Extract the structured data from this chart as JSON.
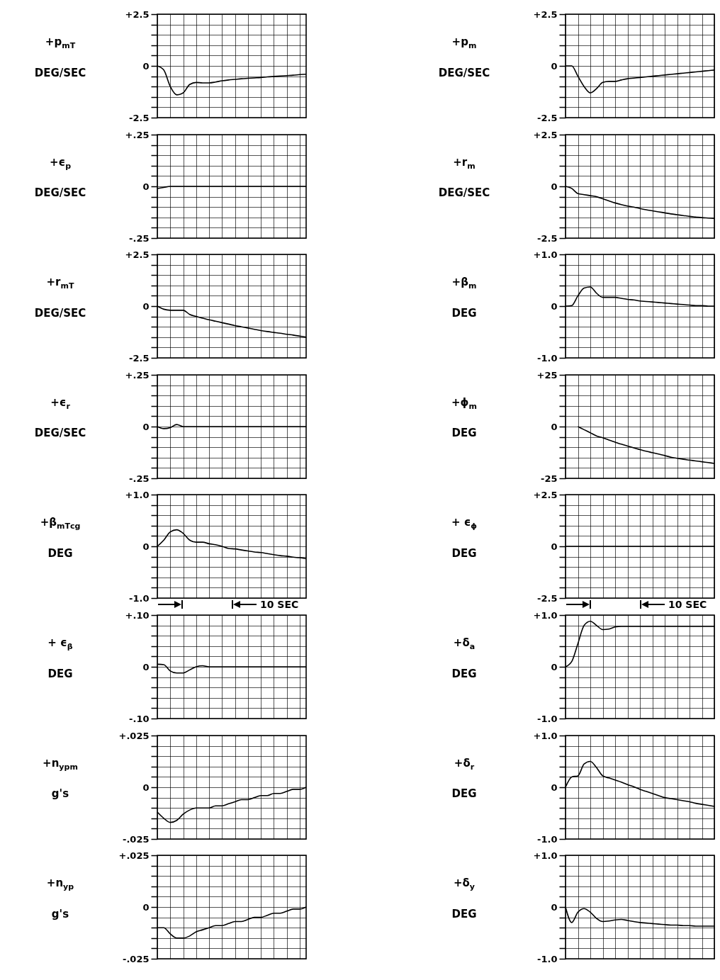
{
  "chart_data": [
    {
      "type": "line",
      "ylabel": "+p$_{mT}$\nDEG/SEC",
      "color": "#000000",
      "categories": [
        null,
        null,
        null,
        null,
        null,
        null,
        null,
        null,
        null,
        null,
        null,
        null,
        null,
        null,
        null,
        null,
        null,
        null,
        null,
        null,
        null,
        null,
        null,
        null
      ],
      "values": [
        0,
        -0.2,
        -1.0,
        -1.4,
        -1.3,
        -0.9,
        -0.8,
        -0.82,
        -0.82,
        -0.78,
        -0.72,
        -0.68,
        -0.65,
        -0.62,
        -0.6,
        -0.58,
        -0.56,
        -0.53,
        -0.51,
        -0.49,
        -0.47,
        -0.45,
        -0.42,
        -0.4
      ],
      "ylim": [
        -2.5,
        2.5
      ],
      "yticks": [
        {
          "value": 2.5,
          "label": "+2.5"
        },
        {
          "value": 2,
          "label": null
        },
        {
          "value": 1.5,
          "label": null
        },
        {
          "value": 1,
          "label": null
        },
        {
          "value": 0.5,
          "label": null
        },
        {
          "value": 0,
          "label": "0"
        },
        {
          "value": -0.5,
          "label": null
        },
        {
          "value": -1,
          "label": null
        },
        {
          "value": -1.5,
          "label": null
        },
        {
          "value": -2,
          "label": null
        },
        {
          "value": -2.5,
          "label": "-2.5"
        }
      ],
      "grid": true,
      "tick_labels": "y"
    },
    {
      "type": "line",
      "ylabel": "+ϵ$_{p}$\nDEG/SEC",
      "color": "#000000",
      "categories": [
        null,
        null,
        null,
        null,
        null,
        null,
        null,
        null,
        null,
        null,
        null,
        null,
        null,
        null,
        null,
        null,
        null,
        null,
        null,
        null,
        null,
        null,
        null,
        null
      ],
      "values": [
        -0.01,
        -0.005,
        0,
        0,
        0,
        0,
        0,
        0,
        0,
        0,
        0,
        0,
        0,
        0,
        0,
        0,
        0,
        0,
        0,
        0,
        0,
        0,
        0,
        0
      ],
      "ylim": [
        -0.25,
        0.25
      ],
      "yticks": [
        {
          "value": 0.25,
          "label": "+.25"
        },
        {
          "value": 0.2,
          "label": null
        },
        {
          "value": 0.15,
          "label": null
        },
        {
          "value": 0.1,
          "label": null
        },
        {
          "value": 0.05,
          "label": null
        },
        {
          "value": 0,
          "label": "0"
        },
        {
          "value": -0.05,
          "label": null
        },
        {
          "value": -0.1,
          "label": null
        },
        {
          "value": -0.15,
          "label": null
        },
        {
          "value": -0.2,
          "label": null
        },
        {
          "value": -0.25,
          "label": "-.25"
        }
      ],
      "grid": true,
      "tick_labels": "y"
    },
    {
      "type": "line",
      "ylabel": "+r$_{mT}$\nDEG/SEC",
      "color": "#000000",
      "categories": [
        null,
        null,
        null,
        null,
        null,
        null,
        null,
        null,
        null,
        null,
        null,
        null,
        null,
        null,
        null,
        null,
        null,
        null,
        null,
        null,
        null,
        null,
        null,
        null
      ],
      "values": [
        0,
        -0.15,
        -0.2,
        -0.2,
        -0.2,
        -0.4,
        -0.5,
        -0.58,
        -0.66,
        -0.73,
        -0.8,
        -0.87,
        -0.94,
        -1.0,
        -1.06,
        -1.12,
        -1.18,
        -1.23,
        -1.27,
        -1.31,
        -1.36,
        -1.4,
        -1.45,
        -1.5
      ],
      "ylim": [
        -2.5,
        2.5
      ],
      "yticks": [
        {
          "value": 2.5,
          "label": "+2.5"
        },
        {
          "value": 2,
          "label": null
        },
        {
          "value": 1.5,
          "label": null
        },
        {
          "value": 1,
          "label": null
        },
        {
          "value": 0.5,
          "label": null
        },
        {
          "value": 0,
          "label": "0"
        },
        {
          "value": -0.5,
          "label": null
        },
        {
          "value": -1,
          "label": null
        },
        {
          "value": -1.5,
          "label": null
        },
        {
          "value": -2,
          "label": null
        },
        {
          "value": -2.5,
          "label": "-2.5"
        }
      ],
      "grid": true,
      "tick_labels": "y"
    },
    {
      "type": "line",
      "ylabel": "+ϵ$_{r}$\nDEG/SEC",
      "color": "#000000",
      "categories": [
        null,
        null,
        null,
        null,
        null,
        null,
        null,
        null,
        null,
        null,
        null,
        null,
        null,
        null,
        null,
        null,
        null,
        null,
        null,
        null,
        null,
        null,
        null,
        null
      ],
      "values": [
        0,
        -0.01,
        -0.005,
        0.01,
        0,
        0,
        0,
        0,
        0,
        0,
        0,
        0,
        0,
        0,
        0,
        0,
        0,
        0,
        0,
        0,
        0,
        0,
        0,
        0
      ],
      "ylim": [
        -0.25,
        0.25
      ],
      "yticks": [
        {
          "value": 0.25,
          "label": "+.25"
        },
        {
          "value": 0.2,
          "label": null
        },
        {
          "value": 0.15,
          "label": null
        },
        {
          "value": 0.1,
          "label": null
        },
        {
          "value": 0.05,
          "label": null
        },
        {
          "value": 0,
          "label": "0"
        },
        {
          "value": -0.05,
          "label": null
        },
        {
          "value": -0.1,
          "label": null
        },
        {
          "value": -0.15,
          "label": null
        },
        {
          "value": -0.2,
          "label": null
        },
        {
          "value": -0.25,
          "label": "-.25"
        }
      ],
      "grid": true,
      "tick_labels": "y"
    },
    {
      "type": "line",
      "ylabel": "+β$_{mT}$$_{cg}$\nDEG",
      "color": "#000000",
      "categories": [
        null,
        null,
        null,
        null,
        null,
        null,
        null,
        null,
        null,
        null,
        null,
        null,
        null,
        null,
        null,
        null,
        null,
        null,
        null,
        null,
        null,
        null,
        null,
        null
      ],
      "values": [
        0,
        0.12,
        0.28,
        0.32,
        0.25,
        0.12,
        0.08,
        0.08,
        0.05,
        0.03,
        0,
        -0.04,
        -0.05,
        -0.07,
        -0.09,
        -0.11,
        -0.12,
        -0.14,
        -0.16,
        -0.18,
        -0.19,
        -0.21,
        -0.22,
        -0.24
      ],
      "ylim": [
        -1,
        1
      ],
      "yticks": [
        {
          "value": 1,
          "label": "+1.0"
        },
        {
          "value": 0.8,
          "label": null
        },
        {
          "value": 0.6,
          "label": null
        },
        {
          "value": 0.4,
          "label": null
        },
        {
          "value": 0.2,
          "label": null
        },
        {
          "value": 0,
          "label": "0"
        },
        {
          "value": -0.2,
          "label": null
        },
        {
          "value": -0.4,
          "label": null
        },
        {
          "value": -0.6,
          "label": null
        },
        {
          "value": -0.8,
          "label": null
        },
        {
          "value": -1,
          "label": "-1.0"
        }
      ],
      "grid": true,
      "tick_labels": "y",
      "annotations": [
        "10 SEC"
      ]
    },
    {
      "type": "line",
      "ylabel": "+ ϵ$_{β}$\nDEG",
      "color": "#000000",
      "categories": [
        null,
        null,
        null,
        null,
        null,
        null,
        null,
        null,
        null,
        null,
        null,
        null,
        null,
        null,
        null,
        null,
        null,
        null,
        null,
        null,
        null,
        null,
        null,
        null
      ],
      "values": [
        0.005,
        0.004,
        -0.008,
        -0.012,
        -0.012,
        -0.006,
        0,
        0.002,
        0,
        0,
        0,
        0,
        0,
        0,
        0,
        0,
        0,
        0,
        0,
        0,
        0,
        0,
        0,
        0
      ],
      "ylim": [
        -0.1,
        0.1
      ],
      "yticks": [
        {
          "value": 0.1,
          "label": "+.10"
        },
        {
          "value": 0.08,
          "label": null
        },
        {
          "value": 0.06,
          "label": null
        },
        {
          "value": 0.04,
          "label": null
        },
        {
          "value": 0.02,
          "label": null
        },
        {
          "value": 0,
          "label": "0"
        },
        {
          "value": -0.02,
          "label": null
        },
        {
          "value": -0.04,
          "label": null
        },
        {
          "value": -0.06,
          "label": null
        },
        {
          "value": -0.08,
          "label": null
        },
        {
          "value": -0.1,
          "label": "-.10"
        }
      ],
      "grid": true,
      "tick_labels": "y"
    },
    {
      "type": "line",
      "ylabel": "+n$_{y}$$_{p}$$_{m}$\ng's",
      "color": "#000000",
      "categories": [
        null,
        null,
        null,
        null,
        null,
        null,
        null,
        null,
        null,
        null,
        null,
        null,
        null,
        null,
        null,
        null,
        null,
        null,
        null,
        null,
        null,
        null,
        null,
        null
      ],
      "values": [
        -0.012,
        -0.015,
        -0.017,
        -0.016,
        -0.013,
        -0.011,
        -0.01,
        -0.01,
        -0.01,
        -0.009,
        -0.009,
        -0.008,
        -0.007,
        -0.006,
        -0.006,
        -0.005,
        -0.004,
        -0.004,
        -0.003,
        -0.003,
        -0.002,
        -0.001,
        -0.001,
        0
      ],
      "ylim": [
        -0.025,
        0.025
      ],
      "yticks": [
        {
          "value": 0.025,
          "label": "+.025"
        },
        {
          "value": 0.02,
          "label": null
        },
        {
          "value": 0.015,
          "label": null
        },
        {
          "value": 0.01,
          "label": null
        },
        {
          "value": 0.005,
          "label": null
        },
        {
          "value": 0,
          "label": "0"
        },
        {
          "value": -0.005,
          "label": null
        },
        {
          "value": -0.01,
          "label": null
        },
        {
          "value": -0.015,
          "label": null
        },
        {
          "value": -0.02,
          "label": null
        },
        {
          "value": -0.025,
          "label": "-.025"
        }
      ],
      "grid": true,
      "tick_labels": "y"
    },
    {
      "type": "line",
      "ylabel": "+n$_{y}$$_{p}$\ng's",
      "color": "#000000",
      "categories": [
        null,
        null,
        null,
        null,
        null,
        null,
        null,
        null,
        null,
        null,
        null,
        null,
        null,
        null,
        null,
        null,
        null,
        null,
        null,
        null,
        null,
        null,
        null,
        null
      ],
      "values": [
        -0.01,
        -0.01,
        -0.013,
        -0.015,
        -0.015,
        -0.014,
        -0.012,
        -0.011,
        -0.01,
        -0.009,
        -0.009,
        -0.008,
        -0.007,
        -0.007,
        -0.006,
        -0.005,
        -0.005,
        -0.004,
        -0.003,
        -0.003,
        -0.002,
        -0.001,
        -0.001,
        0
      ],
      "ylim": [
        -0.025,
        0.025
      ],
      "yticks": [
        {
          "value": 0.025,
          "label": "+.025"
        },
        {
          "value": 0.02,
          "label": null
        },
        {
          "value": 0.015,
          "label": null
        },
        {
          "value": 0.01,
          "label": null
        },
        {
          "value": 0.005,
          "label": null
        },
        {
          "value": 0,
          "label": "0"
        },
        {
          "value": -0.005,
          "label": null
        },
        {
          "value": -0.01,
          "label": null
        },
        {
          "value": -0.015,
          "label": null
        },
        {
          "value": -0.02,
          "label": null
        },
        {
          "value": -0.025,
          "label": "-.025"
        }
      ],
      "grid": true,
      "tick_labels": "y"
    },
    {
      "type": "line",
      "ylabel": "+p$_{m}$\nDEG/SEC",
      "color": "#000000",
      "categories": [
        null,
        null,
        null,
        null,
        null,
        null,
        null,
        null,
        null,
        null,
        null,
        null,
        null,
        null,
        null,
        null,
        null,
        null,
        null,
        null,
        null,
        null,
        null,
        null,
        null
      ],
      "values": [
        0,
        0,
        -0.5,
        -1.0,
        -1.3,
        -1.1,
        -0.8,
        -0.75,
        -0.75,
        -0.68,
        -0.62,
        -0.59,
        -0.56,
        -0.53,
        -0.5,
        -0.47,
        -0.44,
        -0.41,
        -0.38,
        -0.35,
        -0.32,
        -0.29,
        -0.26,
        -0.23,
        -0.2
      ],
      "ylim": [
        -2.5,
        2.5
      ],
      "yticks": [
        {
          "value": 2.5,
          "label": "+2.5"
        },
        {
          "value": 2,
          "label": null
        },
        {
          "value": 1.5,
          "label": null
        },
        {
          "value": 1,
          "label": null
        },
        {
          "value": 0.5,
          "label": null
        },
        {
          "value": 0,
          "label": "0"
        },
        {
          "value": -0.5,
          "label": null
        },
        {
          "value": -1,
          "label": null
        },
        {
          "value": -1.5,
          "label": null
        },
        {
          "value": -2,
          "label": null
        },
        {
          "value": -2.5,
          "label": "-2.5"
        }
      ],
      "grid": true,
      "tick_labels": "y"
    },
    {
      "type": "line",
      "ylabel": "+r$_{m}$\nDEG/SEC",
      "color": "#000000",
      "categories": [
        null,
        null,
        null,
        null,
        null,
        null,
        null,
        null,
        null,
        null,
        null,
        null,
        null,
        null,
        null,
        null,
        null,
        null,
        null,
        null,
        null,
        null,
        null,
        null,
        null
      ],
      "values": [
        0,
        -0.1,
        -0.35,
        -0.4,
        -0.45,
        -0.5,
        -0.6,
        -0.7,
        -0.8,
        -0.88,
        -0.95,
        -1.0,
        -1.07,
        -1.13,
        -1.18,
        -1.23,
        -1.28,
        -1.33,
        -1.37,
        -1.41,
        -1.45,
        -1.48,
        -1.51,
        -1.53,
        -1.55
      ],
      "ylim": [
        -2.5,
        2.5
      ],
      "yticks": [
        {
          "value": 2.5,
          "label": "+2.5"
        },
        {
          "value": 2,
          "label": null
        },
        {
          "value": 1.5,
          "label": null
        },
        {
          "value": 1,
          "label": null
        },
        {
          "value": 0.5,
          "label": null
        },
        {
          "value": 0,
          "label": "0"
        },
        {
          "value": -0.5,
          "label": null
        },
        {
          "value": -1,
          "label": null
        },
        {
          "value": -1.5,
          "label": null
        },
        {
          "value": -2,
          "label": null
        },
        {
          "value": -2.5,
          "label": "-2.5"
        }
      ],
      "grid": true,
      "tick_labels": "y"
    },
    {
      "type": "line",
      "ylabel": "+β$_{m}$\nDEG",
      "color": "#000000",
      "categories": [
        null,
        null,
        null,
        null,
        null,
        null,
        null,
        null,
        null,
        null,
        null,
        null,
        null,
        null,
        null,
        null,
        null,
        null,
        null,
        null,
        null,
        null,
        null,
        null,
        null
      ],
      "values": [
        0,
        0.01,
        0.2,
        0.35,
        0.37,
        0.25,
        0.17,
        0.17,
        0.17,
        0.15,
        0.13,
        0.12,
        0.1,
        0.09,
        0.08,
        0.07,
        0.06,
        0.05,
        0.04,
        0.03,
        0.02,
        0.01,
        0.01,
        0,
        0
      ],
      "ylim": [
        -1,
        1
      ],
      "yticks": [
        {
          "value": 1,
          "label": "+1.0"
        },
        {
          "value": 0.8,
          "label": null
        },
        {
          "value": 0.6,
          "label": null
        },
        {
          "value": 0.4,
          "label": null
        },
        {
          "value": 0.2,
          "label": null
        },
        {
          "value": 0,
          "label": "0"
        },
        {
          "value": -0.2,
          "label": null
        },
        {
          "value": -0.4,
          "label": null
        },
        {
          "value": -0.6,
          "label": null
        },
        {
          "value": -0.8,
          "label": null
        },
        {
          "value": -1,
          "label": "-1.0"
        }
      ],
      "grid": true,
      "tick_labels": "y"
    },
    {
      "type": "line",
      "ylabel": "+ϕ$_{m}$\nDEG",
      "color": "#000000",
      "categories": [
        null,
        null,
        null,
        null,
        null,
        null,
        null,
        null,
        null,
        null,
        null,
        null,
        null,
        null,
        null,
        null,
        null,
        null,
        null,
        null,
        null,
        null,
        null,
        null,
        null
      ],
      "values": [
        null,
        null,
        0,
        -1.5,
        -3,
        -4.5,
        -5.4,
        -6.5,
        -7.5,
        -8.5,
        -9.4,
        -10.3,
        -11.1,
        -11.9,
        -12.6,
        -13.3,
        -14,
        -14.8,
        -15.3,
        -15.8,
        -16.2,
        -16.6,
        -17,
        -17.4,
        -17.8
      ],
      "ylim": [
        -25,
        25
      ],
      "yticks": [
        {
          "value": 25,
          "label": "+25"
        },
        {
          "value": 20,
          "label": null
        },
        {
          "value": 15,
          "label": null
        },
        {
          "value": 10,
          "label": null
        },
        {
          "value": 5,
          "label": null
        },
        {
          "value": 0,
          "label": "0"
        },
        {
          "value": -5,
          "label": null
        },
        {
          "value": -10,
          "label": null
        },
        {
          "value": -15,
          "label": null
        },
        {
          "value": -20,
          "label": null
        },
        {
          "value": -25,
          "label": "-25"
        }
      ],
      "grid": true,
      "tick_labels": "y"
    },
    {
      "type": "line",
      "ylabel": "+ ϵ$_{ϕ}$\nDEG",
      "color": "#000000",
      "categories": [
        null,
        null,
        null,
        null,
        null,
        null,
        null,
        null,
        null,
        null,
        null,
        null,
        null,
        null,
        null,
        null,
        null,
        null,
        null,
        null,
        null,
        null,
        null,
        null,
        null
      ],
      "values": [
        0,
        0,
        0,
        0,
        0,
        0,
        0,
        0,
        0,
        0,
        0,
        0,
        0,
        0,
        0,
        0,
        0,
        0,
        0,
        0,
        0,
        0,
        0,
        0,
        0
      ],
      "ylim": [
        -2.5,
        2.5
      ],
      "yticks": [
        {
          "value": 2.5,
          "label": "+2.5"
        },
        {
          "value": 2,
          "label": null
        },
        {
          "value": 1.5,
          "label": null
        },
        {
          "value": 1,
          "label": null
        },
        {
          "value": 0.5,
          "label": null
        },
        {
          "value": 0,
          "label": "0"
        },
        {
          "value": -0.5,
          "label": null
        },
        {
          "value": -1,
          "label": null
        },
        {
          "value": -1.5,
          "label": null
        },
        {
          "value": -2,
          "label": null
        },
        {
          "value": -2.5,
          "label": "-2.5"
        }
      ],
      "grid": true,
      "tick_labels": "y",
      "annotations": [
        "10 SEC"
      ]
    },
    {
      "type": "line",
      "ylabel": "+δ$_{a}$\nDEG",
      "color": "#000000",
      "categories": [
        null,
        null,
        null,
        null,
        null,
        null,
        null,
        null,
        null,
        null,
        null,
        null,
        null,
        null,
        null,
        null,
        null,
        null,
        null,
        null,
        null,
        null,
        null,
        null,
        null
      ],
      "values": [
        0,
        0.1,
        0.45,
        0.8,
        0.88,
        0.8,
        0.72,
        0.73,
        0.77,
        0.78,
        0.78,
        0.78,
        0.78,
        0.78,
        0.78,
        0.78,
        0.78,
        0.78,
        0.78,
        0.78,
        0.78,
        0.78,
        0.78,
        0.78,
        0.78
      ],
      "ylim": [
        -1,
        1
      ],
      "yticks": [
        {
          "value": 1,
          "label": "+1.0"
        },
        {
          "value": 0.8,
          "label": null
        },
        {
          "value": 0.6,
          "label": null
        },
        {
          "value": 0.4,
          "label": null
        },
        {
          "value": 0.2,
          "label": null
        },
        {
          "value": 0,
          "label": "0"
        },
        {
          "value": -0.2,
          "label": null
        },
        {
          "value": -0.4,
          "label": null
        },
        {
          "value": -0.6,
          "label": null
        },
        {
          "value": -0.8,
          "label": null
        },
        {
          "value": -1,
          "label": "-1.0"
        }
      ],
      "grid": true,
      "tick_labels": "y"
    },
    {
      "type": "line",
      "ylabel": "+δ$_{r}$\nDEG",
      "color": "#000000",
      "categories": [
        null,
        null,
        null,
        null,
        null,
        null,
        null,
        null,
        null,
        null,
        null,
        null,
        null,
        null,
        null,
        null,
        null,
        null,
        null,
        null,
        null,
        null,
        null,
        null,
        null
      ],
      "values": [
        0,
        0.2,
        0.22,
        0.45,
        0.5,
        0.38,
        0.22,
        0.18,
        0.14,
        0.1,
        0.05,
        0.01,
        -0.04,
        -0.08,
        -0.12,
        -0.16,
        -0.2,
        -0.22,
        -0.24,
        -0.26,
        -0.28,
        -0.31,
        -0.33,
        -0.35,
        -0.37
      ],
      "ylim": [
        -1,
        1
      ],
      "yticks": [
        {
          "value": 1,
          "label": "+1.0"
        },
        {
          "value": 0.8,
          "label": null
        },
        {
          "value": 0.6,
          "label": null
        },
        {
          "value": 0.4,
          "label": null
        },
        {
          "value": 0.2,
          "label": null
        },
        {
          "value": 0,
          "label": "0"
        },
        {
          "value": -0.2,
          "label": null
        },
        {
          "value": -0.4,
          "label": null
        },
        {
          "value": -0.6,
          "label": null
        },
        {
          "value": -0.8,
          "label": null
        },
        {
          "value": -1,
          "label": "-1.0"
        }
      ],
      "grid": true,
      "tick_labels": "y"
    },
    {
      "type": "line",
      "ylabel": "+δ$_{y}$\nDEG",
      "color": "#000000",
      "categories": [
        null,
        null,
        null,
        null,
        null,
        null,
        null,
        null,
        null,
        null,
        null,
        null,
        null,
        null,
        null,
        null,
        null,
        null,
        null,
        null,
        null,
        null,
        null,
        null,
        null
      ],
      "values": [
        0,
        -0.3,
        -0.1,
        -0.03,
        -0.1,
        -0.22,
        -0.28,
        -0.27,
        -0.25,
        -0.24,
        -0.26,
        -0.28,
        -0.3,
        -0.31,
        -0.32,
        -0.33,
        -0.34,
        -0.35,
        -0.35,
        -0.36,
        -0.36,
        -0.37,
        -0.37,
        -0.37,
        -0.37
      ],
      "ylim": [
        -1,
        1
      ],
      "yticks": [
        {
          "value": 1,
          "label": "+1.0"
        },
        {
          "value": 0.8,
          "label": null
        },
        {
          "value": 0.6,
          "label": null
        },
        {
          "value": 0.4,
          "label": null
        },
        {
          "value": 0.2,
          "label": null
        },
        {
          "value": 0,
          "label": "0"
        },
        {
          "value": -0.2,
          "label": null
        },
        {
          "value": -0.4,
          "label": null
        },
        {
          "value": -0.6,
          "label": null
        },
        {
          "value": -0.8,
          "label": null
        },
        {
          "value": -1,
          "label": "-1.0"
        }
      ],
      "grid": true,
      "tick_labels": "y"
    }
  ]
}
